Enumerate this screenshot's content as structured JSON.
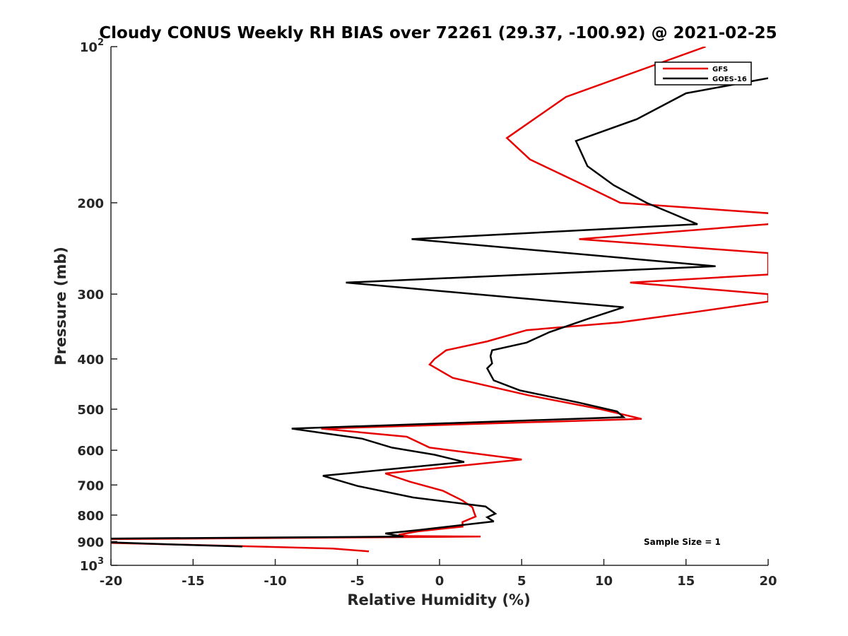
{
  "chart_data": {
    "type": "line",
    "title": "Cloudy CONUS Weekly RH BIAS over 72261 (29.37, -100.92) @ 2021-02-25",
    "xlabel": "Relative Humidity (%)",
    "ylabel": "Pressure (mb)",
    "xlim": [
      -20,
      20
    ],
    "ylim": [
      100,
      1000
    ],
    "y_scale": "log",
    "y_reversed": true,
    "x_ticks": [
      "-20",
      "-15",
      "-10",
      "-5",
      "0",
      "5",
      "10",
      "15",
      "20"
    ],
    "y_ticks": [
      {
        "value": 100,
        "base": "10",
        "exp": "2"
      },
      {
        "value": 200,
        "label": "200"
      },
      {
        "value": 300,
        "label": "300"
      },
      {
        "value": 400,
        "label": "400"
      },
      {
        "value": 500,
        "label": "500"
      },
      {
        "value": 600,
        "label": "600"
      },
      {
        "value": 700,
        "label": "700"
      },
      {
        "value": 800,
        "label": "800"
      },
      {
        "value": 900,
        "label": "900"
      },
      {
        "value": 1000,
        "base": "10",
        "exp": "3"
      }
    ],
    "legend_position": "top-right",
    "annotation": "Sample Size = 1",
    "series": [
      {
        "name": "GFS",
        "color": "#e60000",
        "points": [
          [
            16.2,
            100
          ],
          [
            7.7,
            125
          ],
          [
            4.1,
            150
          ],
          [
            5.5,
            165
          ],
          [
            8.8,
            185
          ],
          [
            11.0,
            200
          ],
          [
            20.5,
            210
          ],
          [
            20.0,
            220
          ],
          [
            8.5,
            235
          ],
          [
            20.0,
            250
          ],
          [
            20.0,
            275
          ],
          [
            11.6,
            285
          ],
          [
            20.0,
            300
          ],
          [
            20.0,
            310
          ],
          [
            15.5,
            325
          ],
          [
            11.0,
            340
          ],
          [
            5.3,
            352
          ],
          [
            2.9,
            370
          ],
          [
            0.4,
            385
          ],
          [
            -0.3,
            400
          ],
          [
            -0.6,
            410
          ],
          [
            0.8,
            435
          ],
          [
            5.4,
            470
          ],
          [
            9.8,
            500
          ],
          [
            12.3,
            522
          ],
          [
            -7.2,
            545
          ],
          [
            -2.0,
            565
          ],
          [
            -0.6,
            593
          ],
          [
            5.0,
            625
          ],
          [
            -3.3,
            665
          ],
          [
            -1.8,
            690
          ],
          [
            0.2,
            718
          ],
          [
            1.4,
            750
          ],
          [
            2.0,
            773
          ],
          [
            2.1,
            790
          ],
          [
            2.2,
            805
          ],
          [
            1.4,
            825
          ],
          [
            1.4,
            842
          ],
          [
            -1.3,
            860
          ],
          [
            -2.5,
            873
          ],
          [
            -1.9,
            878
          ],
          [
            2.5,
            880
          ],
          [
            -20.0,
            890
          ],
          [
            -23.0,
            895
          ],
          [
            -20.0,
            905
          ],
          [
            -6.5,
            928
          ],
          [
            -4.3,
            940
          ]
        ]
      },
      {
        "name": "GOES-16",
        "color": "#000000",
        "points": [
          [
            20.0,
            115
          ],
          [
            15.0,
            123
          ],
          [
            12.0,
            138
          ],
          [
            8.3,
            152
          ],
          [
            9.0,
            170
          ],
          [
            10.6,
            185
          ],
          [
            12.6,
            200
          ],
          [
            14.2,
            210
          ],
          [
            15.7,
            220
          ],
          [
            -1.7,
            235
          ],
          [
            16.8,
            265
          ],
          [
            -5.7,
            285
          ],
          [
            4.7,
            305
          ],
          [
            11.2,
            318
          ],
          [
            9.0,
            335
          ],
          [
            6.7,
            355
          ],
          [
            5.3,
            372
          ],
          [
            3.2,
            385
          ],
          [
            3.1,
            395
          ],
          [
            3.2,
            408
          ],
          [
            2.9,
            417
          ],
          [
            3.3,
            440
          ],
          [
            4.9,
            460
          ],
          [
            8.4,
            485
          ],
          [
            10.8,
            505
          ],
          [
            11.2,
            518
          ],
          [
            -9.0,
            545
          ],
          [
            -4.7,
            570
          ],
          [
            -2.9,
            593
          ],
          [
            -0.3,
            612
          ],
          [
            1.5,
            632
          ],
          [
            -7.1,
            672
          ],
          [
            -5.0,
            703
          ],
          [
            -1.6,
            740
          ],
          [
            2.8,
            770
          ],
          [
            3.4,
            795
          ],
          [
            2.9,
            808
          ],
          [
            3.3,
            823
          ],
          [
            -1.3,
            855
          ],
          [
            -3.3,
            868
          ],
          [
            -2.7,
            875
          ],
          [
            -2.2,
            880
          ],
          [
            -20.0,
            888
          ],
          [
            -23.0,
            893
          ],
          [
            -20.0,
            903
          ],
          [
            -16.0,
            912
          ],
          [
            -12.0,
            920
          ]
        ]
      }
    ]
  }
}
